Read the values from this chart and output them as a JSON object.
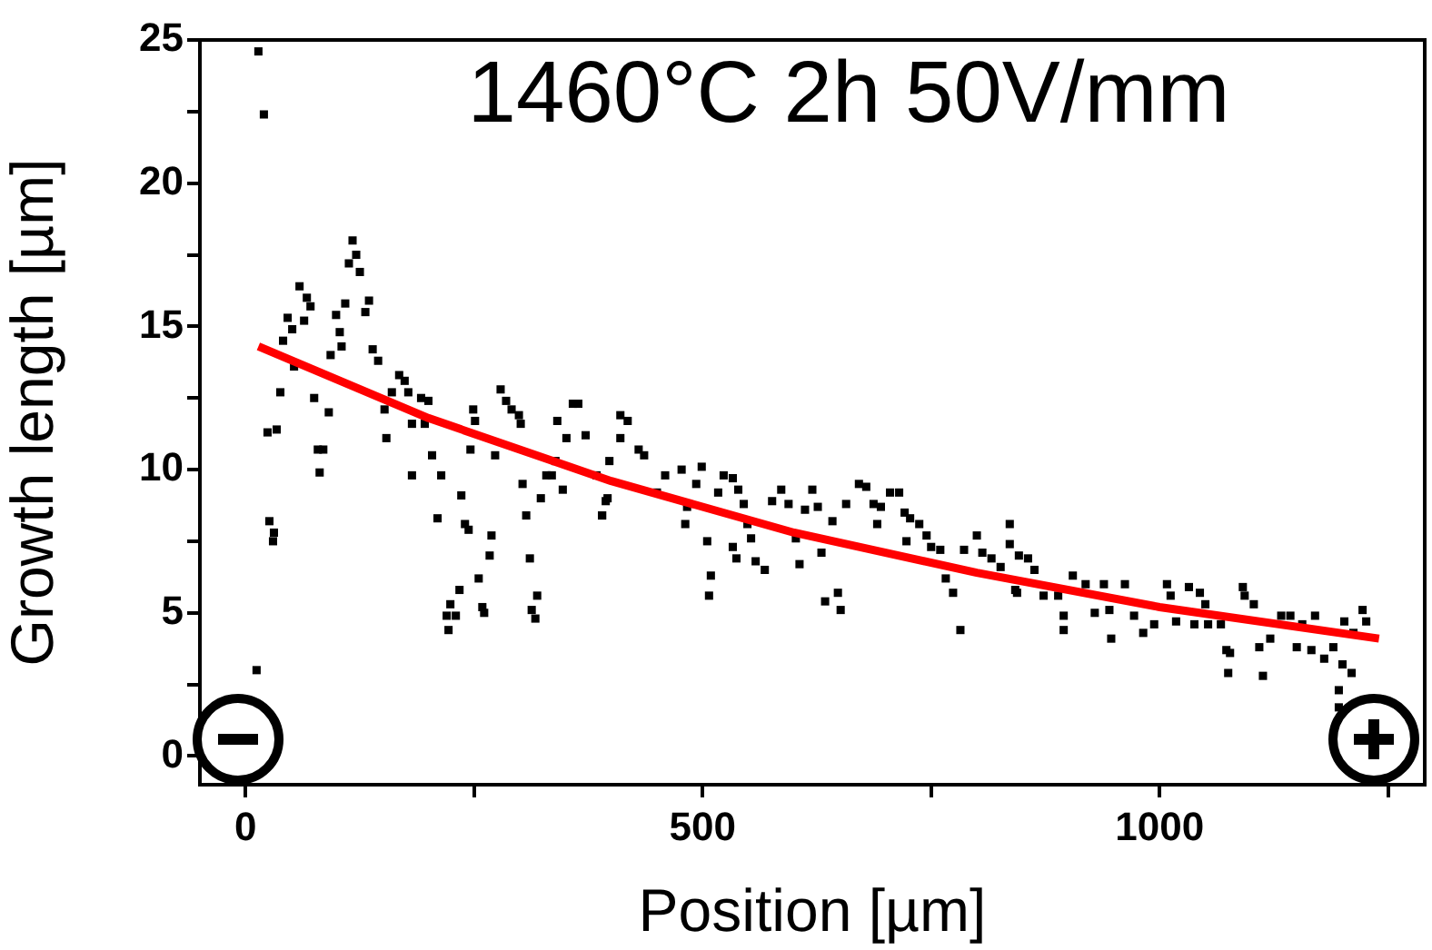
{
  "chart_data": {
    "type": "scatter",
    "title": "1460°C 2h 50V/mm",
    "xlabel": "Position [µm]",
    "ylabel": "Growth length [µm]",
    "xlim": [
      -50,
      1290
    ],
    "xticks": [
      0,
      {
        "value": 250,
        "label": null
      },
      500,
      {
        "value": 750,
        "label": null
      },
      1000,
      {
        "value": 1250,
        "label": null
      }
    ],
    "ylim": [
      -1,
      25
    ],
    "yticks": [
      0,
      {
        "value": 2.5,
        "label": null
      },
      5,
      {
        "value": 7.5,
        "label": null
      },
      10,
      {
        "value": 12.5,
        "label": null
      },
      15,
      {
        "value": 17.5,
        "label": null
      },
      20,
      {
        "value": 22.5,
        "label": null
      },
      25
    ],
    "grid": false,
    "legend": false,
    "series": [
      {
        "type": "scatter",
        "marker": "square",
        "color": "#000000",
        "x": [
          14,
          20,
          24,
          34,
          26,
          31,
          30,
          12,
          38,
          41,
          46,
          51,
          59,
          67,
          64,
          71,
          53,
          75,
          79,
          85,
          81,
          91,
          93,
          99,
          103,
          105,
          109,
          113,
          117,
          121,
          125,
          131,
          135,
          139,
          145,
          152,
          154,
          160,
          168,
          174,
          178,
          182,
          192,
          200,
          196,
          182,
          204,
          214,
          210,
          236,
          240,
          244,
          269,
          267,
          255,
          234,
          224,
          220,
          222,
          230,
          259,
          261,
          246,
          249,
          251,
          273,
          279,
          285,
          291,
          299,
          301,
          303,
          307,
          311,
          319,
          313,
          317,
          323,
          329,
          335,
          339,
          341,
          347,
          351,
          358,
          364,
          372,
          384,
          390,
          396,
          398,
          410,
          418,
          410,
          430,
          436,
          394,
          390,
          450,
          459,
          477,
          483,
          499,
          493,
          481,
          505,
          509,
          507,
          523,
          533,
          517,
          539,
          545,
          549,
          533,
          537,
          553,
          558,
          568,
          576,
          586,
          594,
          602,
          606,
          612,
          620,
          626,
          630,
          634,
          648,
          651,
          642,
          657,
          671,
          679,
          687,
          695,
          705,
          715,
          691,
          721,
          727,
          723,
          737,
          745,
          750,
          760,
          766,
          774,
          782,
          786,
          800,
          806,
          816,
          826,
          836,
          836,
          846,
          842,
          856,
          844,
          863,
          873,
          889,
          905,
          895,
          895,
          919,
          929,
          939,
          945,
          962,
          947,
          972,
          982,
          994,
          1008,
          1012,
          1018,
          1032,
          1038,
          1044,
          1050,
          1053,
          1067,
          1073,
          1075,
          1077,
          1091,
          1093,
          1103,
          1109,
          1113,
          1121,
          1133,
          1143,
          1150,
          1156,
          1166,
          1170,
          1180,
          1190,
          1202,
          1212,
          1222,
          1226,
          1200,
          1210,
          1196,
          1196
        ],
        "values": [
          24.6,
          22.4,
          11.3,
          11.4,
          8.2,
          7.8,
          7.5,
          3.0,
          12.7,
          14.5,
          15.3,
          14.9,
          16.4,
          16.0,
          15.2,
          15.7,
          13.6,
          12.5,
          10.7,
          10.7,
          9.9,
          12.0,
          14.0,
          15.4,
          14.8,
          14.3,
          15.8,
          17.2,
          18.0,
          17.5,
          16.9,
          15.5,
          15.9,
          14.2,
          13.8,
          12.1,
          11.1,
          12.7,
          13.3,
          13.1,
          12.7,
          11.6,
          12.5,
          12.4,
          11.6,
          9.8,
          10.5,
          9.8,
          8.3,
          9.1,
          8.1,
          7.9,
          7.7,
          7.0,
          6.2,
          5.8,
          5.3,
          4.9,
          4.4,
          4.9,
          5.2,
          5.0,
          10.7,
          12.1,
          11.7,
          10.5,
          12.8,
          12.4,
          12.1,
          11.9,
          11.6,
          9.5,
          8.4,
          6.9,
          5.6,
          5.1,
          4.8,
          9.0,
          9.8,
          9.8,
          10.3,
          11.7,
          9.3,
          11.1,
          12.3,
          12.3,
          11.2,
          9.8,
          8.4,
          9.0,
          10.3,
          11.9,
          11.7,
          11.1,
          10.7,
          10.5,
          8.9,
          8.4,
          9.2,
          9.8,
          10.0,
          8.7,
          10.1,
          9.5,
          8.1,
          7.5,
          6.3,
          5.6,
          9.8,
          9.7,
          9.2,
          9.3,
          8.8,
          8.1,
          7.3,
          6.9,
          7.6,
          6.8,
          6.5,
          8.9,
          9.3,
          8.8,
          7.6,
          6.7,
          8.6,
          9.3,
          8.7,
          7.1,
          5.4,
          5.7,
          5.1,
          8.2,
          8.8,
          9.5,
          9.4,
          8.8,
          8.7,
          9.2,
          9.2,
          8.1,
          8.5,
          8.3,
          7.5,
          8.1,
          7.7,
          7.3,
          7.2,
          6.2,
          5.7,
          4.4,
          7.2,
          7.7,
          7.1,
          6.9,
          6.6,
          8.1,
          7.4,
          7.0,
          5.8,
          6.9,
          5.7,
          6.5,
          5.6,
          5.6,
          6.3,
          4.9,
          4.4,
          6.0,
          5.0,
          6.0,
          5.1,
          6.0,
          4.1,
          4.9,
          4.3,
          4.6,
          6.0,
          5.6,
          4.7,
          5.9,
          4.6,
          5.7,
          5.3,
          4.6,
          4.6,
          3.7,
          2.9,
          3.6,
          5.9,
          5.6,
          5.3,
          3.8,
          2.8,
          4.1,
          4.9,
          4.9,
          3.8,
          4.6,
          3.7,
          4.9,
          3.4,
          3.8,
          4.7,
          4.3,
          5.1,
          4.7,
          3.2,
          2.9,
          2.3,
          1.7
        ]
      },
      {
        "type": "line",
        "marker": "none",
        "color": "#ff0000",
        "x": [
          14,
          200,
          400,
          600,
          800,
          1000,
          1240
        ],
        "values": [
          14.3,
          11.8,
          9.6,
          7.8,
          6.4,
          5.2,
          4.1
        ]
      }
    ]
  }
}
